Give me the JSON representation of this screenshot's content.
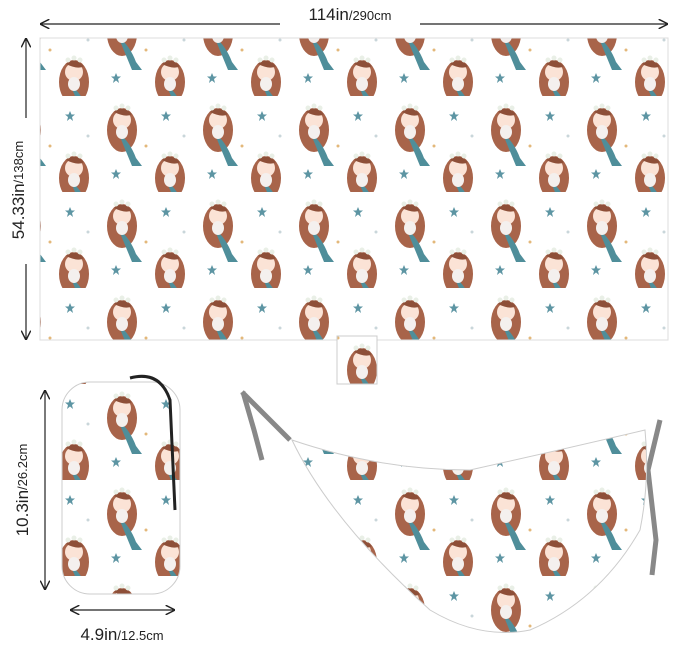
{
  "dimensions": {
    "length": {
      "main": "114in",
      "secondary": "/290cm"
    },
    "width": {
      "main": "54.33in",
      "secondary": "/138cm"
    },
    "pouch_height": {
      "main": "10.3in",
      "secondary": "/26.2cm"
    },
    "pouch_width": {
      "main": "4.9in",
      "secondary": "/12.5cm"
    }
  }
}
